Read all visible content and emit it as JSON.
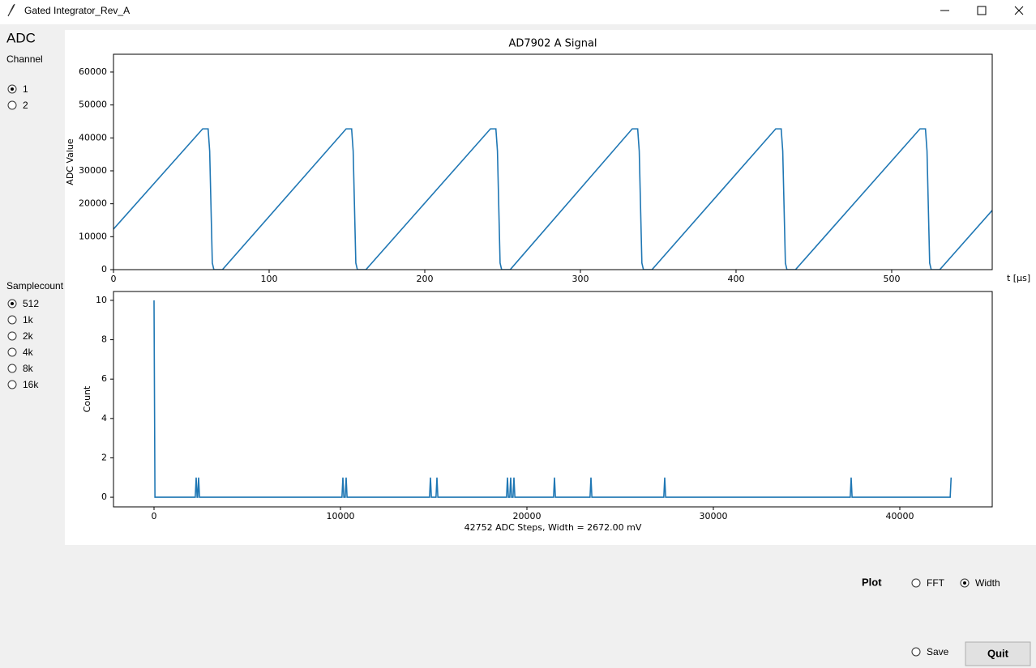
{
  "window": {
    "title": "Gated Integrator_Rev_A"
  },
  "sidebar": {
    "heading": "ADC",
    "channel": {
      "label": "Channel",
      "options": [
        "1",
        "2"
      ],
      "selected": 0
    },
    "samplecount": {
      "label": "Samplecount",
      "options": [
        "512",
        "1k",
        "2k",
        "4k",
        "8k",
        "16k"
      ],
      "selected": 0
    }
  },
  "controls": {
    "plot": {
      "label": "Plot",
      "options": [
        "FFT",
        "Width"
      ],
      "selected": 1
    },
    "save": "Save",
    "quit": "Quit"
  },
  "chart_data": [
    {
      "type": "line",
      "title": "AD7902 A Signal",
      "xlabel": "t [μs]",
      "ylabel": "ADC Value",
      "color": "#1f77b4",
      "x": [
        0,
        57.3,
        60.8,
        61.8,
        63.5,
        64.5,
        70,
        149.5,
        153,
        154,
        155.7,
        156.7,
        162.2,
        242.2,
        245.7,
        246.7,
        248.4,
        249.4,
        254.9,
        333.3,
        336.8,
        337.8,
        339.5,
        340.5,
        346,
        425.5,
        429,
        430,
        431.7,
        432.7,
        438.2,
        518.2,
        521.7,
        522.7,
        524.4,
        525.4,
        530.9,
        564.6
      ],
      "values": [
        12300,
        42752,
        42752,
        36000,
        2000,
        0,
        0,
        42752,
        42752,
        36000,
        2000,
        0,
        0,
        42752,
        42752,
        36000,
        2000,
        0,
        0,
        42752,
        42752,
        36000,
        2000,
        0,
        0,
        42752,
        42752,
        36000,
        2000,
        0,
        0,
        42752,
        42752,
        36000,
        2000,
        0,
        0,
        18000
      ],
      "xlim": [
        0,
        564.6
      ],
      "ylim": [
        0,
        65400
      ],
      "xticks": [
        0,
        100,
        200,
        300,
        400,
        500
      ],
      "yticks": [
        0,
        10000,
        20000,
        30000,
        40000,
        50000,
        60000
      ]
    },
    {
      "type": "line",
      "xlabel": "42752 ADC Steps, Width = 2672.00 mV",
      "ylabel": "Count",
      "color": "#1f77b4",
      "x": [
        0,
        50,
        2211,
        2261,
        2311,
        2341,
        2391,
        2441,
        10080,
        10130,
        10180,
        10254,
        10304,
        10354,
        14776,
        14826,
        14876,
        15124,
        15174,
        15224,
        18907,
        18957,
        19007,
        19080,
        19130,
        19180,
        19254,
        19304,
        19354,
        21428,
        21478,
        21528,
        23385,
        23435,
        23485,
        27341,
        27391,
        27441,
        37341,
        37391,
        37441,
        42702,
        42752
      ],
      "values": [
        10,
        0,
        0,
        1,
        0,
        0,
        1,
        0,
        0,
        1,
        0,
        0,
        1,
        0,
        0,
        1,
        0,
        0,
        1,
        0,
        0,
        1,
        0,
        0,
        1,
        0,
        0,
        1,
        0,
        0,
        1,
        0,
        0,
        1,
        0,
        0,
        1,
        0,
        0,
        1,
        0,
        0,
        1
      ],
      "xlim": [
        -2174,
        44957
      ],
      "ylim": [
        -0.49,
        10.45
      ],
      "xticks": [
        0,
        10000,
        20000,
        30000,
        40000
      ],
      "yticks": [
        0,
        2,
        4,
        6,
        8,
        10
      ]
    }
  ]
}
